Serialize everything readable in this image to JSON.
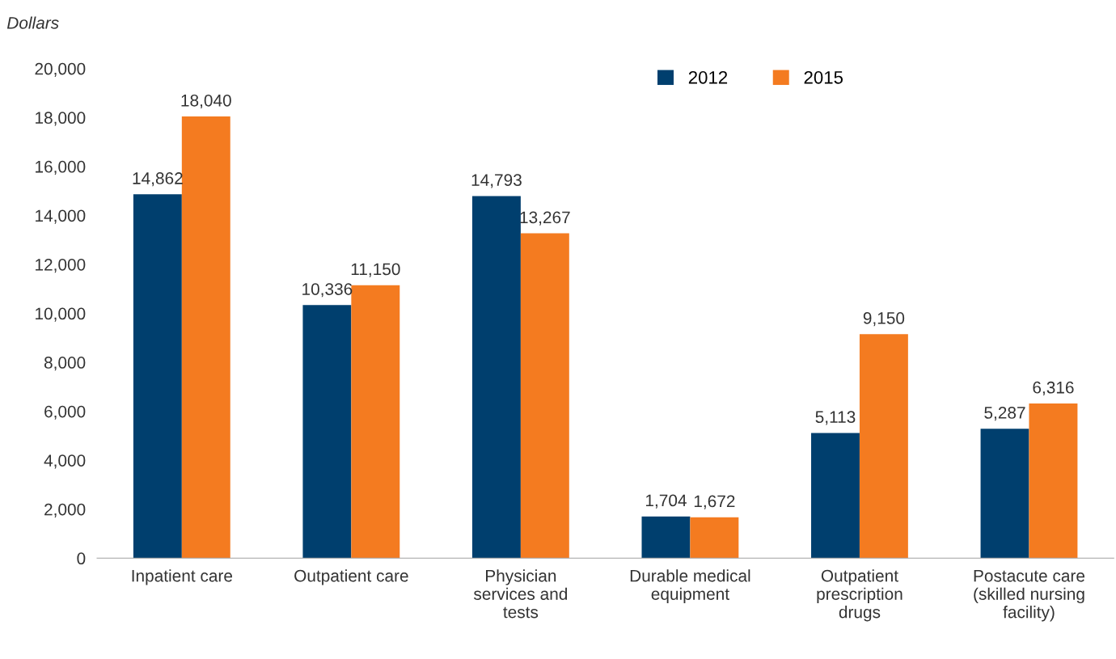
{
  "chart_data": {
    "type": "bar",
    "ylabel": "Dollars",
    "categories": [
      "Inpatient care",
      "Outpatient care",
      "Physician\nservices and\ntests",
      "Durable medical\nequipment",
      "Outpatient\nprescription\ndrugs",
      "Postacute care\n(skilled nursing\nfacility)"
    ],
    "series": [
      {
        "name": "2012",
        "color": "#003f6e",
        "values": [
          14862,
          10336,
          14793,
          1704,
          5113,
          5287
        ],
        "value_labels": [
          "14,862",
          "10,336",
          "14,793",
          "1,704",
          "5,113",
          "5,287"
        ]
      },
      {
        "name": "2015",
        "color": "#f47b20",
        "values": [
          18040,
          11150,
          13267,
          1672,
          9150,
          6316
        ],
        "value_labels": [
          "18,040",
          "11,150",
          "13,267",
          "1,672",
          "9,150",
          "6,316"
        ]
      }
    ],
    "ylim": [
      0,
      20000
    ],
    "yticks": [
      {
        "value": 0,
        "label": "0"
      },
      {
        "value": 2000,
        "label": "2,000"
      },
      {
        "value": 4000,
        "label": "4,000"
      },
      {
        "value": 6000,
        "label": "6,000"
      },
      {
        "value": 8000,
        "label": "8,000"
      },
      {
        "value": 10000,
        "label": "10,000"
      },
      {
        "value": 12000,
        "label": "12,000"
      },
      {
        "value": 14000,
        "label": "14,000"
      },
      {
        "value": 16000,
        "label": "16,000"
      },
      {
        "value": 18000,
        "label": "18,000"
      },
      {
        "value": 20000,
        "label": "20,000"
      }
    ],
    "grid": false,
    "legend": "top right"
  }
}
